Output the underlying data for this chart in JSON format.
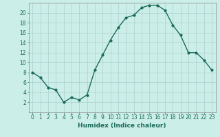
{
  "x": [
    0,
    1,
    2,
    3,
    4,
    5,
    6,
    7,
    8,
    9,
    10,
    11,
    12,
    13,
    14,
    15,
    16,
    17,
    18,
    19,
    20,
    21,
    22,
    23
  ],
  "y": [
    8,
    7,
    5,
    4.5,
    2,
    3,
    2.5,
    3.5,
    8.5,
    11.5,
    14.5,
    17,
    19,
    19.5,
    21,
    21.5,
    21.5,
    20.5,
    17.5,
    15.5,
    12,
    12,
    10.5,
    8.5
  ],
  "line_color": "#1a6b5a",
  "marker": "o",
  "markersize": 2,
  "linewidth": 1.0,
  "bg_color": "#cceee8",
  "grid_color": "#aacfcf",
  "xlabel": "Humidex (Indice chaleur)",
  "xlabel_fontsize": 6.5,
  "tick_fontsize": 5.5,
  "ylim": [
    0,
    22
  ],
  "xlim": [
    -0.5,
    23.5
  ],
  "yticks": [
    2,
    4,
    6,
    8,
    10,
    12,
    14,
    16,
    18,
    20
  ],
  "xticks": [
    0,
    1,
    2,
    3,
    4,
    5,
    6,
    7,
    8,
    9,
    10,
    11,
    12,
    13,
    14,
    15,
    16,
    17,
    18,
    19,
    20,
    21,
    22,
    23
  ]
}
